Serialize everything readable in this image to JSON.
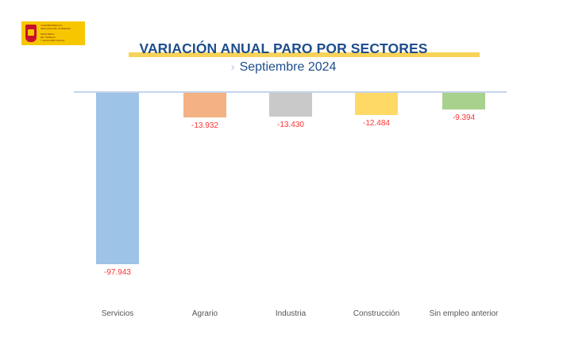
{
  "logo": {
    "line1": "VICEPRESIDENCIA",
    "line2": "SEGUNDA DEL GOBIERNO",
    "line3": "MINISTERIO",
    "line4": "DE TRABAJO",
    "line5": "Y ECONOMÍA SOCIAL"
  },
  "header": {
    "title": "VARIACIÓN ANUAL PARO POR SECTORES",
    "subtitle": "Septiembre 2024",
    "chevron": "›"
  },
  "chart_data": {
    "type": "bar",
    "title": "VARIACIÓN ANUAL PARO POR SECTORES",
    "subtitle": "Septiembre 2024",
    "categories": [
      "Servicios",
      "Agrario",
      "Industria",
      "Construcción",
      "Sin empleo anterior"
    ],
    "values": [
      -97943,
      -13932,
      -13430,
      -12484,
      -9394
    ],
    "labels": [
      "-97.943",
      "-13.932",
      "-13.430",
      "-12.484",
      "-9.394"
    ],
    "colors": [
      "#9dc3e6",
      "#f4b183",
      "#c9c9c9",
      "#ffd966",
      "#a9d18e"
    ],
    "label_color": "#ff3333",
    "xlabel": "",
    "ylabel": "",
    "grid": false,
    "legend": false
  }
}
